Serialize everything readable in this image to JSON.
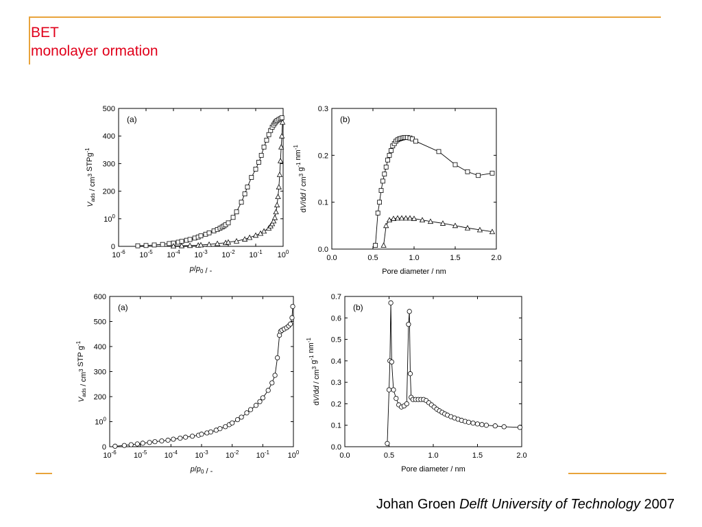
{
  "slide": {
    "title_line1": "BET",
    "title_line2": "monolayer ormation",
    "footer_author": "Johan Groen",
    "footer_institution": "Delft University of Technology",
    "footer_year": "2007",
    "accent_color": "#e8a33a",
    "title_color": "#e0001a"
  },
  "chart_data": [
    {
      "id": "top-a",
      "type": "scatter",
      "panel_label": "(a)",
      "xscale": "log",
      "xlim": [
        1e-06,
        1
      ],
      "xticks": [
        "10-6",
        "10-5",
        "10-4",
        "10-3",
        "10-2",
        "10-1",
        "100"
      ],
      "ylim": [
        0,
        500
      ],
      "yticks": [
        "0",
        "100",
        "200",
        "300",
        "400",
        "500"
      ],
      "xlabel": "p/p0 / -",
      "ylabel": "Vads / cm3 STPg-1",
      "series": [
        {
          "marker": "square",
          "x": [
            5e-06,
            1e-05,
            2e-05,
            4e-05,
            7e-05,
            0.0001,
            0.00015,
            0.0002,
            0.0003,
            0.0004,
            0.0006,
            0.0008,
            0.001,
            0.0015,
            0.002,
            0.003,
            0.004,
            0.005,
            0.006,
            0.007,
            0.008,
            0.01,
            0.015,
            0.02,
            0.03,
            0.04,
            0.05,
            0.07,
            0.1,
            0.13,
            0.16,
            0.2,
            0.25,
            0.3,
            0.35,
            0.4,
            0.45,
            0.5,
            0.55,
            0.6,
            0.7,
            0.8,
            0.9
          ],
          "y": [
            2,
            3,
            5,
            7,
            10,
            12,
            15,
            18,
            22,
            25,
            30,
            34,
            38,
            44,
            49,
            56,
            61,
            66,
            70,
            74,
            78,
            85,
            105,
            125,
            160,
            190,
            215,
            250,
            280,
            305,
            330,
            360,
            385,
            405,
            420,
            432,
            440,
            447,
            452,
            456,
            460,
            463,
            466
          ]
        },
        {
          "marker": "triangle",
          "x": [
            0.0001,
            0.0002,
            0.0004,
            0.0008,
            0.001,
            0.002,
            0.004,
            0.008,
            0.01,
            0.02,
            0.04,
            0.06,
            0.1,
            0.15,
            0.2,
            0.3,
            0.35,
            0.4,
            0.45,
            0.5,
            0.55,
            0.6,
            0.65,
            0.7,
            0.75,
            0.8,
            0.85,
            0.9,
            0.95
          ],
          "y": [
            1,
            2,
            3,
            4,
            5,
            7,
            10,
            13,
            15,
            19,
            26,
            32,
            40,
            47,
            55,
            66,
            74,
            82,
            92,
            104,
            125,
            150,
            180,
            215,
            260,
            310,
            360,
            400,
            450
          ]
        }
      ]
    },
    {
      "id": "top-b",
      "type": "line",
      "panel_label": "(b)",
      "xlim": [
        0,
        2
      ],
      "xticks": [
        "0.0",
        "0.5",
        "1.0",
        "1.5",
        "2.0"
      ],
      "ylim": [
        0,
        0.3
      ],
      "yticks": [
        "0.0",
        "0.1",
        "0.2",
        "0.3"
      ],
      "xlabel": "Pore diameter / nm",
      "ylabel": "dV/dd / cm3 g-1 nm-1",
      "series": [
        {
          "marker": "square",
          "x": [
            0.53,
            0.56,
            0.58,
            0.6,
            0.62,
            0.64,
            0.66,
            0.68,
            0.7,
            0.72,
            0.74,
            0.76,
            0.78,
            0.8,
            0.82,
            0.84,
            0.86,
            0.88,
            0.9,
            0.92,
            0.95,
            0.98,
            1.02,
            1.3,
            1.5,
            1.65,
            1.78,
            1.95
          ],
          "y": [
            0.008,
            0.077,
            0.1,
            0.125,
            0.145,
            0.16,
            0.175,
            0.19,
            0.2,
            0.21,
            0.22,
            0.225,
            0.23,
            0.233,
            0.235,
            0.236,
            0.237,
            0.238,
            0.238,
            0.238,
            0.237,
            0.235,
            0.23,
            0.208,
            0.18,
            0.165,
            0.157,
            0.162
          ]
        },
        {
          "marker": "triangle",
          "x": [
            0.63,
            0.66,
            0.7,
            0.75,
            0.8,
            0.85,
            0.9,
            0.95,
            1.0,
            1.1,
            1.2,
            1.35,
            1.5,
            1.65,
            1.8,
            1.95
          ],
          "y": [
            0.008,
            0.05,
            0.062,
            0.065,
            0.066,
            0.066,
            0.066,
            0.066,
            0.065,
            0.062,
            0.059,
            0.055,
            0.05,
            0.045,
            0.041,
            0.037
          ]
        }
      ]
    },
    {
      "id": "bottom-a",
      "type": "scatter",
      "panel_label": "(a)",
      "xscale": "log",
      "xlim": [
        1e-06,
        1
      ],
      "xticks": [
        "10-6",
        "10-5",
        "10-4",
        "10-3",
        "10-2",
        "10-1",
        "100"
      ],
      "ylim": [
        0,
        600
      ],
      "yticks": [
        "0",
        "100",
        "200",
        "300",
        "400",
        "500",
        "600"
      ],
      "xlabel": "p/p0 / -",
      "ylabel": "Vads / cm3 STP g-1",
      "series": [
        {
          "marker": "circle",
          "x": [
            1.5e-06,
            3e-06,
            5e-06,
            8e-06,
            1.2e-05,
            2e-05,
            3e-05,
            5e-05,
            8e-05,
            0.00012,
            0.0002,
            0.0003,
            0.0005,
            0.0008,
            0.001,
            0.0015,
            0.002,
            0.003,
            0.004,
            0.006,
            0.008,
            0.01,
            0.015,
            0.02,
            0.03,
            0.04,
            0.06,
            0.08,
            0.1,
            0.15,
            0.2,
            0.25,
            0.3,
            0.35,
            0.38,
            0.42,
            0.5,
            0.6,
            0.7,
            0.8,
            0.9,
            0.95
          ],
          "y": [
            2,
            5,
            8,
            11,
            14,
            17,
            20,
            23,
            26,
            30,
            34,
            38,
            42,
            46,
            50,
            55,
            59,
            66,
            72,
            80,
            88,
            95,
            108,
            118,
            135,
            148,
            165,
            180,
            195,
            225,
            255,
            285,
            355,
            445,
            460,
            465,
            470,
            475,
            482,
            490,
            515,
            560
          ]
        }
      ]
    },
    {
      "id": "bottom-b",
      "type": "line",
      "panel_label": "(b)",
      "xlim": [
        0,
        2
      ],
      "xticks": [
        "0.0",
        "0.5",
        "1.0",
        "1.5",
        "2.0"
      ],
      "ylim": [
        0,
        0.7
      ],
      "yticks": [
        "0.0",
        "0.1",
        "0.2",
        "0.3",
        "0.4",
        "0.5",
        "0.6",
        "0.7"
      ],
      "xlabel": "Pore diameter / nm",
      "ylabel": "dV/dd / cm3 g-1 nm-1",
      "series": [
        {
          "marker": "circle",
          "x": [
            0.48,
            0.5,
            0.51,
            0.52,
            0.53,
            0.55,
            0.58,
            0.61,
            0.64,
            0.67,
            0.7,
            0.72,
            0.73,
            0.74,
            0.75,
            0.77,
            0.8,
            0.83,
            0.86,
            0.89,
            0.92,
            0.95,
            0.98,
            1.01,
            1.04,
            1.07,
            1.1,
            1.13,
            1.16,
            1.2,
            1.24,
            1.28,
            1.32,
            1.36,
            1.4,
            1.45,
            1.5,
            1.55,
            1.6,
            1.7,
            1.8,
            1.98
          ],
          "y": [
            0.015,
            0.265,
            0.4,
            0.67,
            0.395,
            0.265,
            0.225,
            0.195,
            0.185,
            0.19,
            0.2,
            0.57,
            0.63,
            0.34,
            0.23,
            0.22,
            0.22,
            0.22,
            0.22,
            0.22,
            0.215,
            0.205,
            0.195,
            0.185,
            0.175,
            0.167,
            0.16,
            0.153,
            0.147,
            0.14,
            0.134,
            0.128,
            0.123,
            0.118,
            0.114,
            0.11,
            0.106,
            0.103,
            0.1,
            0.097,
            0.093,
            0.09
          ]
        }
      ]
    }
  ]
}
